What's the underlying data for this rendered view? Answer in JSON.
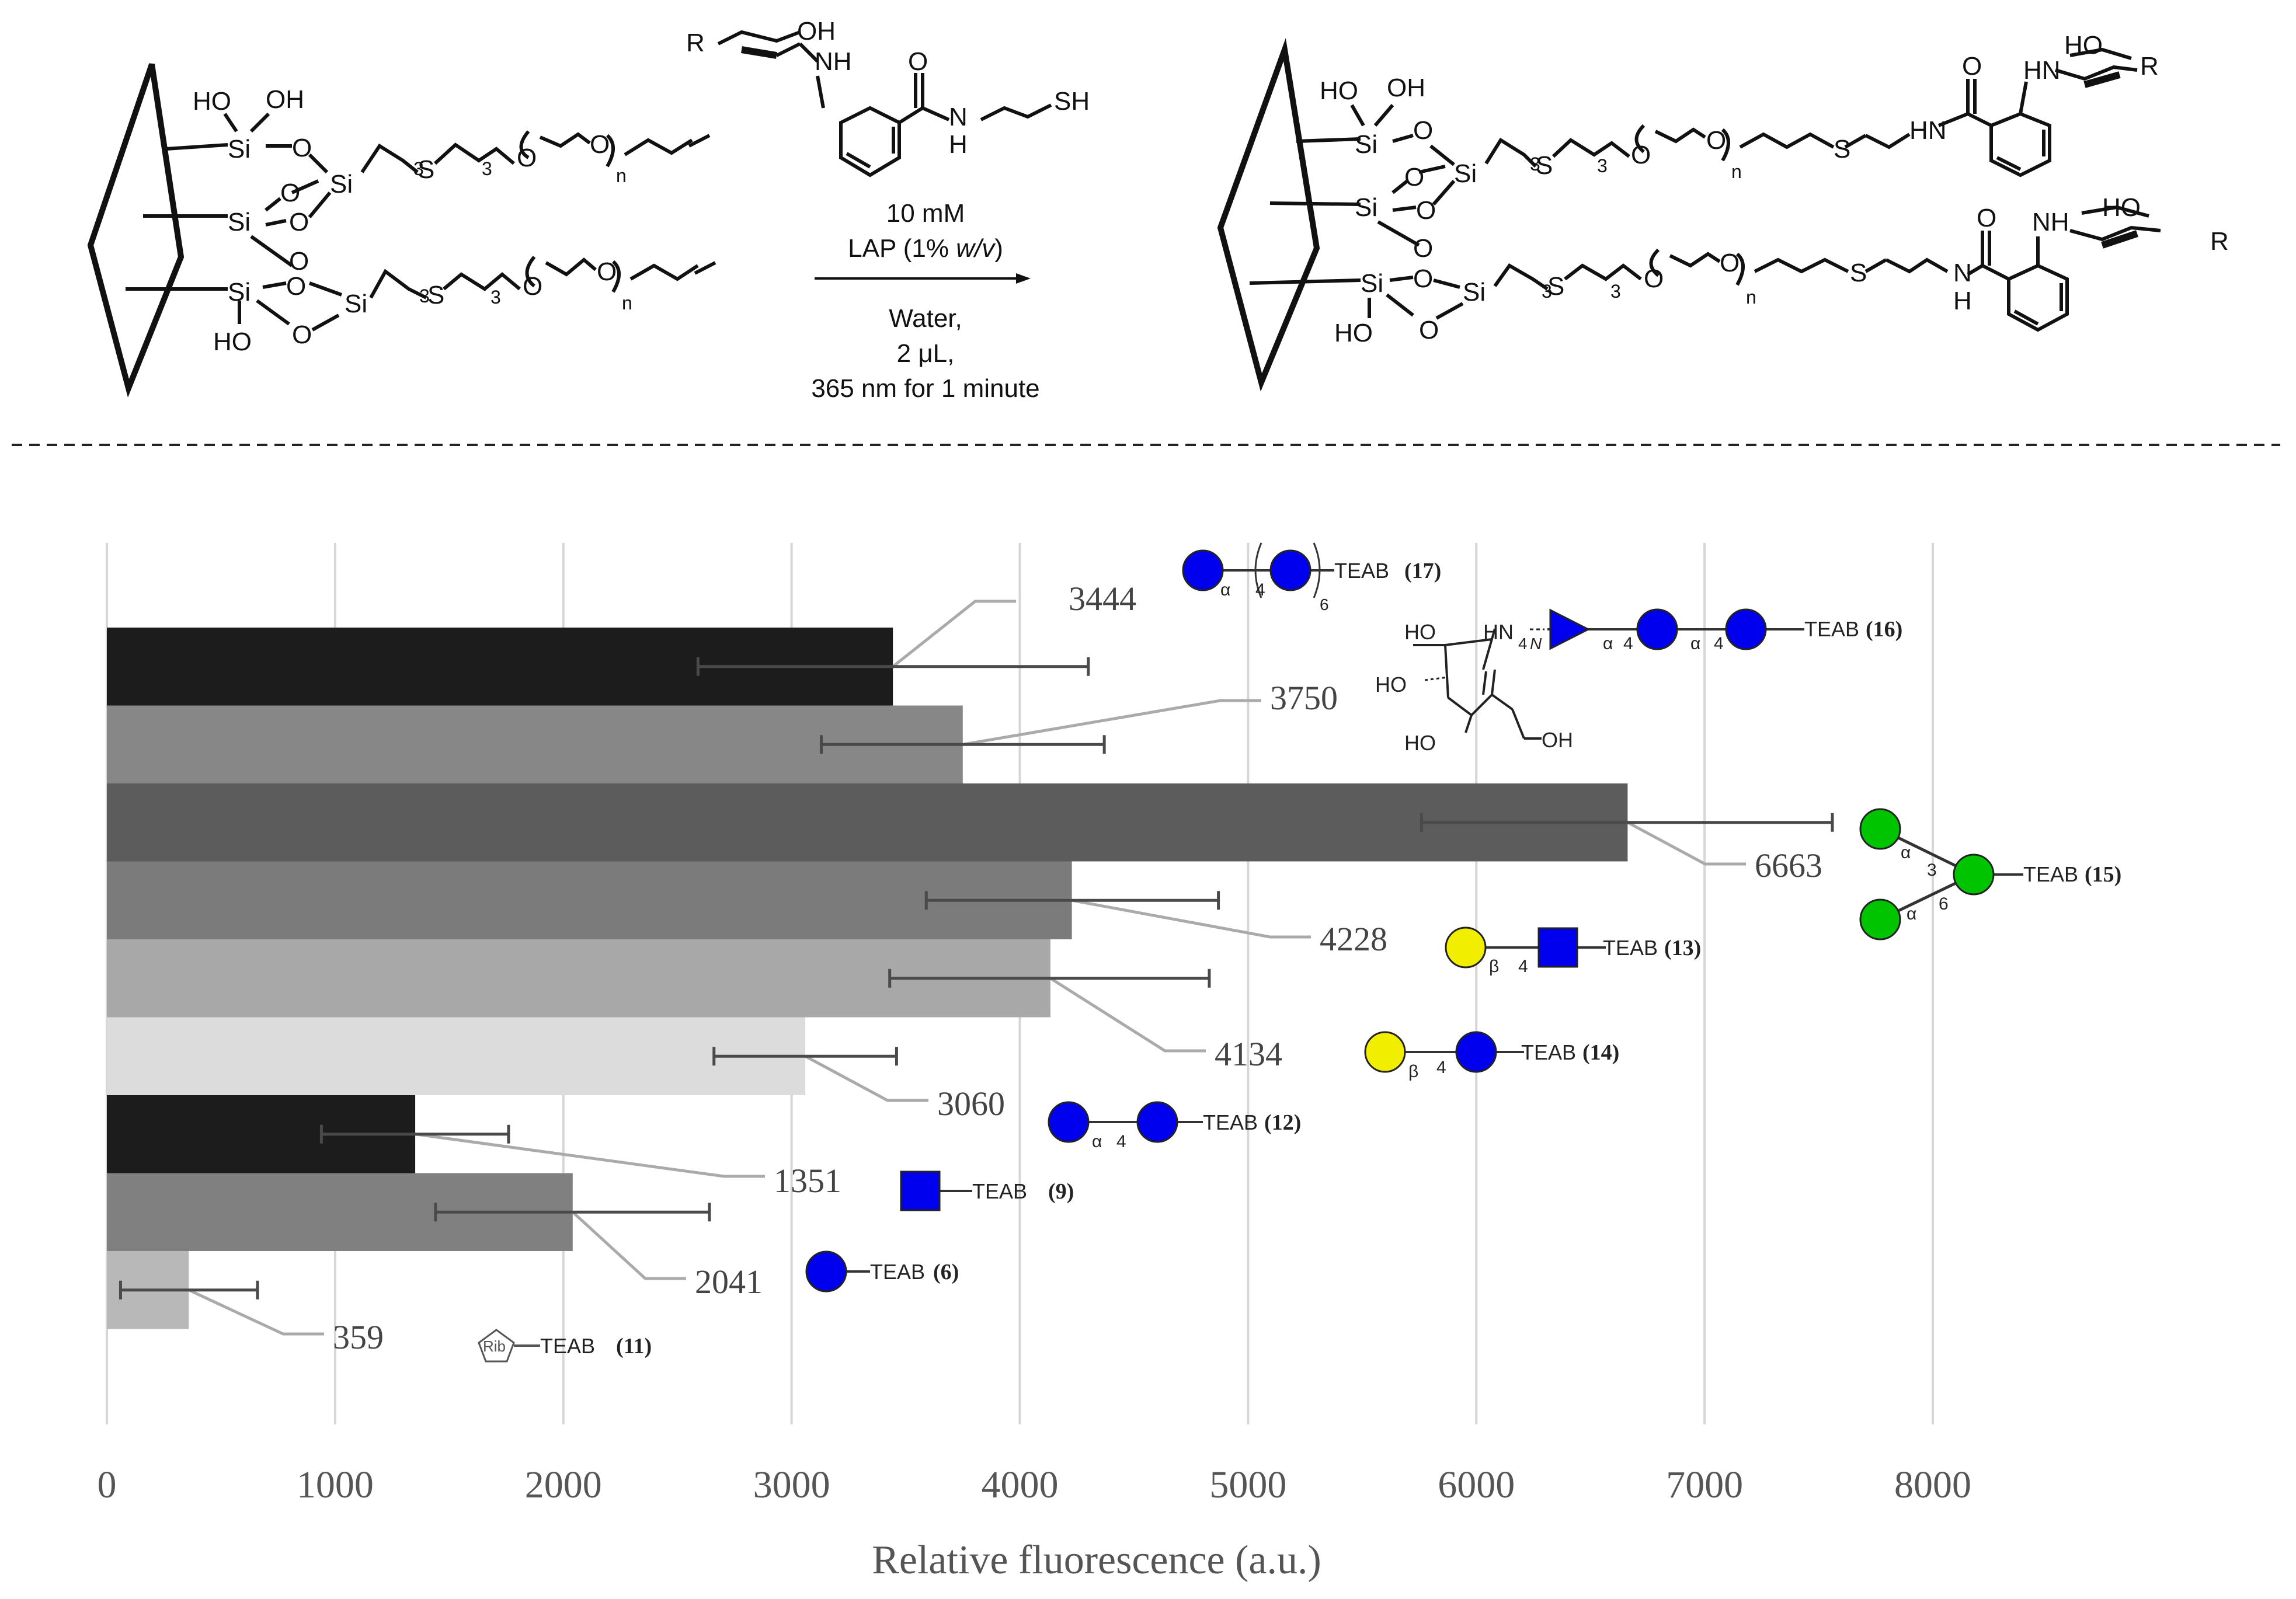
{
  "scheme": {
    "left_labels": {
      "ho1": "HO",
      "oh1": "OH",
      "si1": "Si",
      "o1": "O",
      "si2": "Si",
      "sub3a": "3",
      "s1": "S",
      "sub3b": "3",
      "o2": "O",
      "o3": "O",
      "n1": "n",
      "o4": "O",
      "o5": "O",
      "si3": "Si",
      "o6": "O",
      "si4": "Si",
      "o7": "O",
      "si5": "Si",
      "sub3c": "3",
      "s2": "S",
      "sub3d": "3",
      "o8": "O",
      "o9": "O",
      "n2": "n",
      "ho2": "HO",
      "o10": "O"
    },
    "reagent": {
      "r": "R",
      "oh": "OH",
      "nh": "NH",
      "o": "O",
      "n": "N",
      "h": "H",
      "sh": "SH"
    },
    "conditions": {
      "line1": "10 mM",
      "line2_prefix": "LAP (1% ",
      "line2_italic": "w/v",
      "line2_suffix": ")",
      "line3": "Water,",
      "line4": "2 μL,",
      "line5": "365 nm for 1 minute"
    },
    "right_labels": {
      "ho1": "HO",
      "oh1": "OH",
      "si1": "Si",
      "o1": "O",
      "si2": "Si",
      "o2": "O",
      "sub3a": "3",
      "s1": "S",
      "sub3b": "3",
      "o3": "O",
      "o4": "O",
      "n1": "n",
      "s2": "S",
      "hn1": "HN",
      "o5": "O",
      "ho_r1": "HO",
      "hn_r1": "HN",
      "r1": "R",
      "si3": "Si",
      "o6": "O",
      "si4": "Si",
      "o7": "O",
      "si5": "Si",
      "o8": "O",
      "sub3c": "3",
      "s3": "S",
      "sub3d": "3",
      "o9": "O",
      "o10": "O",
      "n2": "n",
      "s4": "S",
      "n3": "N",
      "h3": "H",
      "o11": "O",
      "ho2": "HO",
      "ho_r2": "HO",
      "nh_r2": "NH",
      "r2": "R"
    }
  },
  "chart_data": {
    "type": "bar",
    "orientation": "horizontal",
    "xlabel": "Relative fluorescence (a.u.)",
    "xlim": [
      0,
      8000
    ],
    "xticks": [
      0,
      1000,
      2000,
      3000,
      4000,
      5000,
      6000,
      7000,
      8000
    ],
    "xtick_labels": [
      "0",
      "1000",
      "2000",
      "3000",
      "4000",
      "5000",
      "6000",
      "7000",
      "8000"
    ],
    "grid": true,
    "bars": [
      {
        "compound": "17",
        "value": 3444,
        "err_low": 2590,
        "err_high": 4300,
        "color": "#1c1c1c",
        "label": "3444"
      },
      {
        "compound": "16",
        "value": 3750,
        "err_low": 3130,
        "err_high": 4370,
        "color": "#878787",
        "label": "3750"
      },
      {
        "compound": "15",
        "value": 6663,
        "err_low": 5760,
        "err_high": 7560,
        "color": "#5c5c5c",
        "label": "6663"
      },
      {
        "compound": "13",
        "value": 4228,
        "err_low": 3590,
        "err_high": 4870,
        "color": "#7b7b7b",
        "label": "4228"
      },
      {
        "compound": "14",
        "value": 4134,
        "err_low": 3430,
        "err_high": 4830,
        "color": "#a8a8a8",
        "label": "4134"
      },
      {
        "compound": "12",
        "value": 3060,
        "err_low": 2660,
        "err_high": 3460,
        "color": "#dcdcdc",
        "label": "3060"
      },
      {
        "compound": "9",
        "value": 1351,
        "err_low": 940,
        "err_high": 1760,
        "color": "#1c1c1c",
        "label": "1351"
      },
      {
        "compound": "6",
        "value": 2041,
        "err_low": 1440,
        "err_high": 2640,
        "color": "#808080",
        "label": "2041"
      },
      {
        "compound": "11",
        "value": 359,
        "err_low": 60,
        "err_high": 660,
        "color": "#b8b8b8",
        "label": "359"
      }
    ],
    "glycans": {
      "g17": {
        "linkage_alpha": "α",
        "linkage_pos": "4",
        "repeat": "6",
        "tag": "TEAB",
        "id": "(17)"
      },
      "g16": {
        "ho1": "HO",
        "ho2": "HO",
        "ho3": "HO",
        "oh": "OH",
        "hn": "HN",
        "pos": "4",
        "n": "N",
        "a1": "α",
        "p1": "4",
        "a2": "α",
        "p2": "4",
        "tag": "TEAB",
        "id": "(16)"
      },
      "g15": {
        "a1": "α",
        "p1": "3",
        "a2": "α",
        "p2": "6",
        "tag": "TEAB",
        "id": "(15)"
      },
      "g13": {
        "b": "β",
        "p": "4",
        "tag": "TEAB",
        "id": "(13)"
      },
      "g14": {
        "b": "β",
        "p": "4",
        "tag": "TEAB",
        "id": "(14)"
      },
      "g12": {
        "a": "α",
        "p": "4",
        "tag": "TEAB",
        "id": "(12)"
      },
      "g9": {
        "tag": "TEAB",
        "id": "(9)"
      },
      "g6": {
        "tag": "TEAB",
        "id": "(6)"
      },
      "g11": {
        "rib": "Rib",
        "tag": "TEAB",
        "id": "(11)"
      }
    },
    "symbol_colors": {
      "glucose": "#0000ee",
      "galactose": "#f2ee00",
      "mannose": "#00c400",
      "glcnac": "#0000ee"
    }
  }
}
